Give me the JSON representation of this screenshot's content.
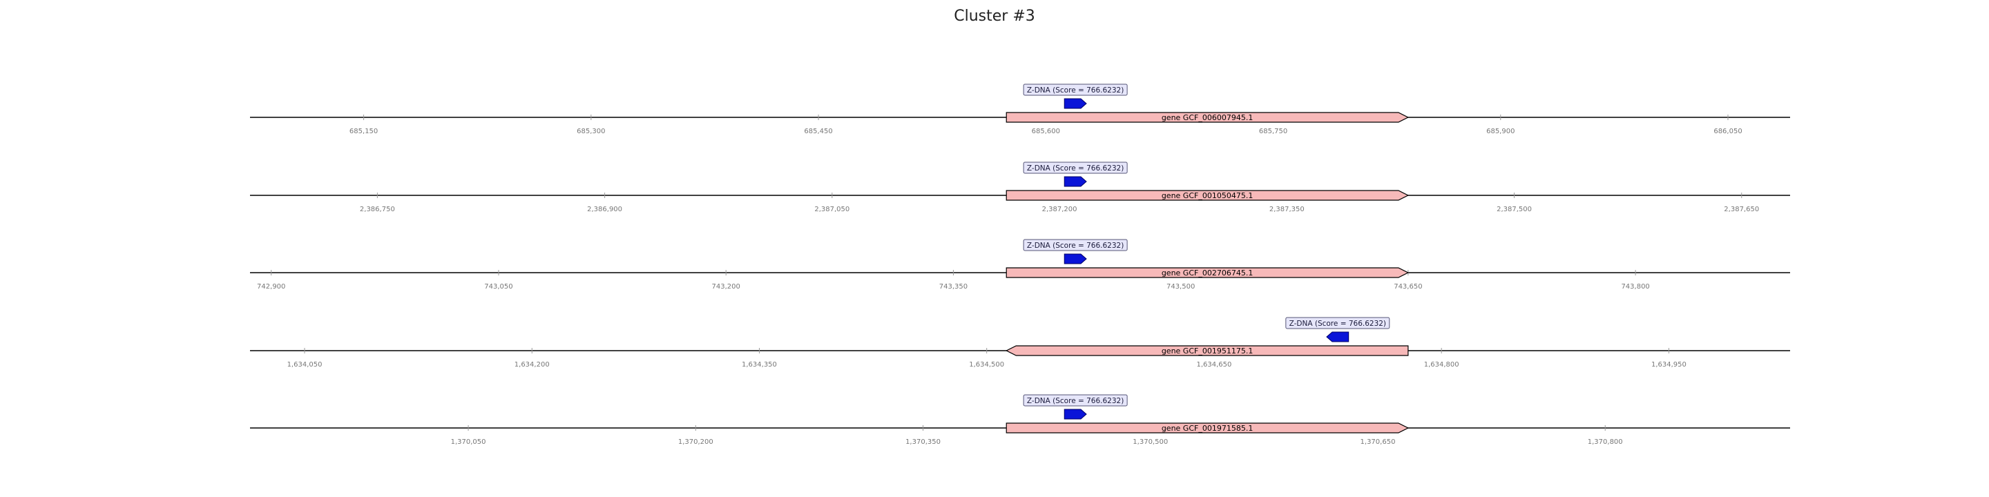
{
  "title": "Cluster #3",
  "colors": {
    "gene_fill": "#f7b9b9",
    "gene_stroke": "#000000",
    "zdna_fill": "#0a14d8",
    "zdna_stroke": "#000066",
    "label_box_fill": "#e6e6fa",
    "label_box_stroke": "#555577",
    "axis_line": "#000000",
    "tick_color": "#999999"
  },
  "tracks": [
    {
      "gene_label": "gene GCF_006007945.1",
      "gene_strand": "+",
      "gene_range": [
        685574,
        685839
      ],
      "feature_label": "Z-DNA (Score = 766.6232)",
      "feature_strand": "+",
      "feature_range": [
        685615,
        685624
      ],
      "ticks": [
        "685,150",
        "685,300",
        "685,450",
        "685,600",
        "685,750",
        "685,900",
        "686,050"
      ],
      "tick_values": [
        685150,
        685300,
        685450,
        685600,
        685750,
        685900,
        686050
      ],
      "view_range": [
        685075,
        686091
      ]
    },
    {
      "gene_label": "gene GCF_001050475.1",
      "gene_strand": "+",
      "gene_range": [
        2387165,
        2387430
      ],
      "feature_label": "Z-DNA (Score = 766.6232)",
      "feature_strand": "+",
      "feature_range": [
        2387206,
        2387215
      ],
      "ticks": [
        "2,386,750",
        "2,386,900",
        "2,387,050",
        "2,387,200",
        "2,387,350",
        "2,387,500",
        "2,387,650"
      ],
      "tick_values": [
        2386750,
        2386900,
        2387050,
        2387200,
        2387350,
        2387500,
        2387650
      ],
      "view_range": [
        2386666,
        2387682
      ]
    },
    {
      "gene_label": "gene GCF_002706745.1",
      "gene_strand": "+",
      "gene_range": [
        743385,
        743650
      ],
      "feature_label": "Z-DNA (Score = 766.6232)",
      "feature_strand": "+",
      "feature_range": [
        743426,
        743435
      ],
      "ticks": [
        "742,900",
        "743,050",
        "743,200",
        "743,350",
        "743,500",
        "743,650",
        "743,800"
      ],
      "tick_values": [
        742900,
        743050,
        743200,
        743350,
        743500,
        743650,
        743800
      ],
      "view_range": [
        742886,
        743902
      ]
    },
    {
      "gene_label": "gene GCF_001951175.1",
      "gene_strand": "-",
      "gene_range": [
        1634513,
        1634778
      ],
      "feature_label": "Z-DNA (Score = 766.6232)",
      "feature_strand": "-",
      "feature_range": [
        1634727,
        1634736
      ],
      "ticks": [
        "1,634,050",
        "1,634,200",
        "1,634,350",
        "1,634,500",
        "1,634,650",
        "1,634,800",
        "1,634,950"
      ],
      "tick_values": [
        1634050,
        1634200,
        1634350,
        1634500,
        1634650,
        1634800,
        1634950
      ],
      "view_range": [
        1634014,
        1635030
      ]
    },
    {
      "gene_label": "gene GCF_001971585.1",
      "gene_strand": "+",
      "gene_range": [
        1370405,
        1370670
      ],
      "feature_label": "Z-DNA (Score = 766.6232)",
      "feature_strand": "+",
      "feature_range": [
        1370446,
        1370455
      ],
      "ticks": [
        "1,370,050",
        "1,370,200",
        "1,370,350",
        "1,370,500",
        "1,370,650",
        "1,370,800"
      ],
      "tick_values": [
        1370050,
        1370200,
        1370350,
        1370500,
        1370650,
        1370800
      ],
      "view_range": [
        1369906,
        1370922
      ]
    }
  ]
}
